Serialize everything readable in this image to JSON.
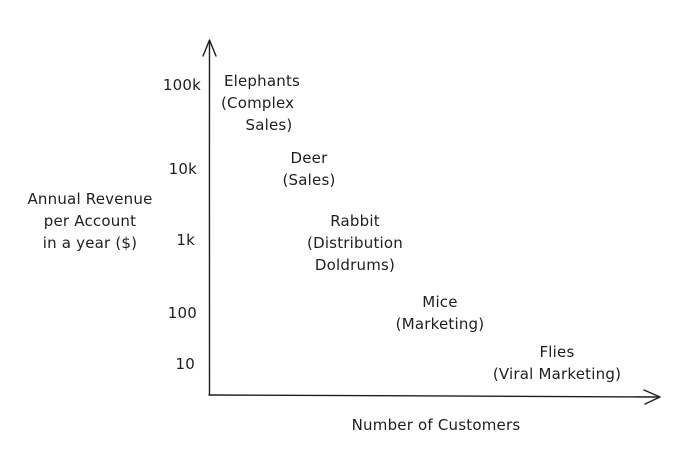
{
  "diagram": {
    "y_axis_label": [
      "Annual Revenue",
      "per Account",
      "in a year ($)"
    ],
    "x_axis_label": "Number of Customers",
    "y_ticks": [
      "100k",
      "10k",
      "1k",
      "100",
      "10"
    ],
    "groups": [
      {
        "lines": [
          "Elephants",
          "(Complex",
          "Sales)"
        ]
      },
      {
        "lines": [
          "Deer",
          "(Sales)"
        ]
      },
      {
        "lines": [
          "Rabbit",
          "(Distribution",
          "Doldrums)"
        ]
      },
      {
        "lines": [
          "Mice",
          "(Marketing)"
        ]
      },
      {
        "lines": [
          "Flies",
          "(Viral Marketing)"
        ]
      }
    ],
    "colors": {
      "ink": "#1e1e1e",
      "background": "#ffffff"
    }
  }
}
